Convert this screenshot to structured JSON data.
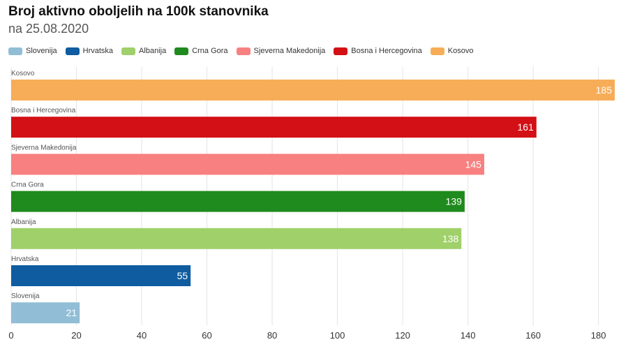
{
  "title": "Broj aktivno oboljelih na 100k stanovnika",
  "subtitle": "na 25.08.2020",
  "chart_data": {
    "type": "bar",
    "orientation": "horizontal",
    "categories": [
      "Kosovo",
      "Bosna i Hercegovina",
      "Sjeverna Makedonija",
      "Crna Gora",
      "Albanija",
      "Hrvatska",
      "Slovenija"
    ],
    "values": [
      185,
      161,
      145,
      139,
      138,
      55,
      21
    ],
    "colors": [
      "#F7AD58",
      "#D21015",
      "#F88080",
      "#1F8A1E",
      "#9FD06A",
      "#0F5CA0",
      "#91BED6"
    ],
    "value_label_colors": [
      "#ffffff",
      "#ffffff",
      "#ffffff",
      "#ffffff",
      "#ffffff",
      "#ffffff",
      "#ffffff"
    ],
    "legend": [
      "Slovenija",
      "Hrvatska",
      "Albanija",
      "Crna Gora",
      "Sjeverna Makedonija",
      "Bosna i Hercegovina",
      "Kosovo"
    ],
    "legend_colors": [
      "#91BED6",
      "#0F5CA0",
      "#9FD06A",
      "#1F8A1E",
      "#F88080",
      "#D21015",
      "#F7AD58"
    ],
    "xlim": [
      0,
      185
    ],
    "xticks": [
      0,
      20,
      40,
      60,
      80,
      100,
      120,
      140,
      160,
      180
    ],
    "grid": true,
    "legend_position": "top-left"
  }
}
